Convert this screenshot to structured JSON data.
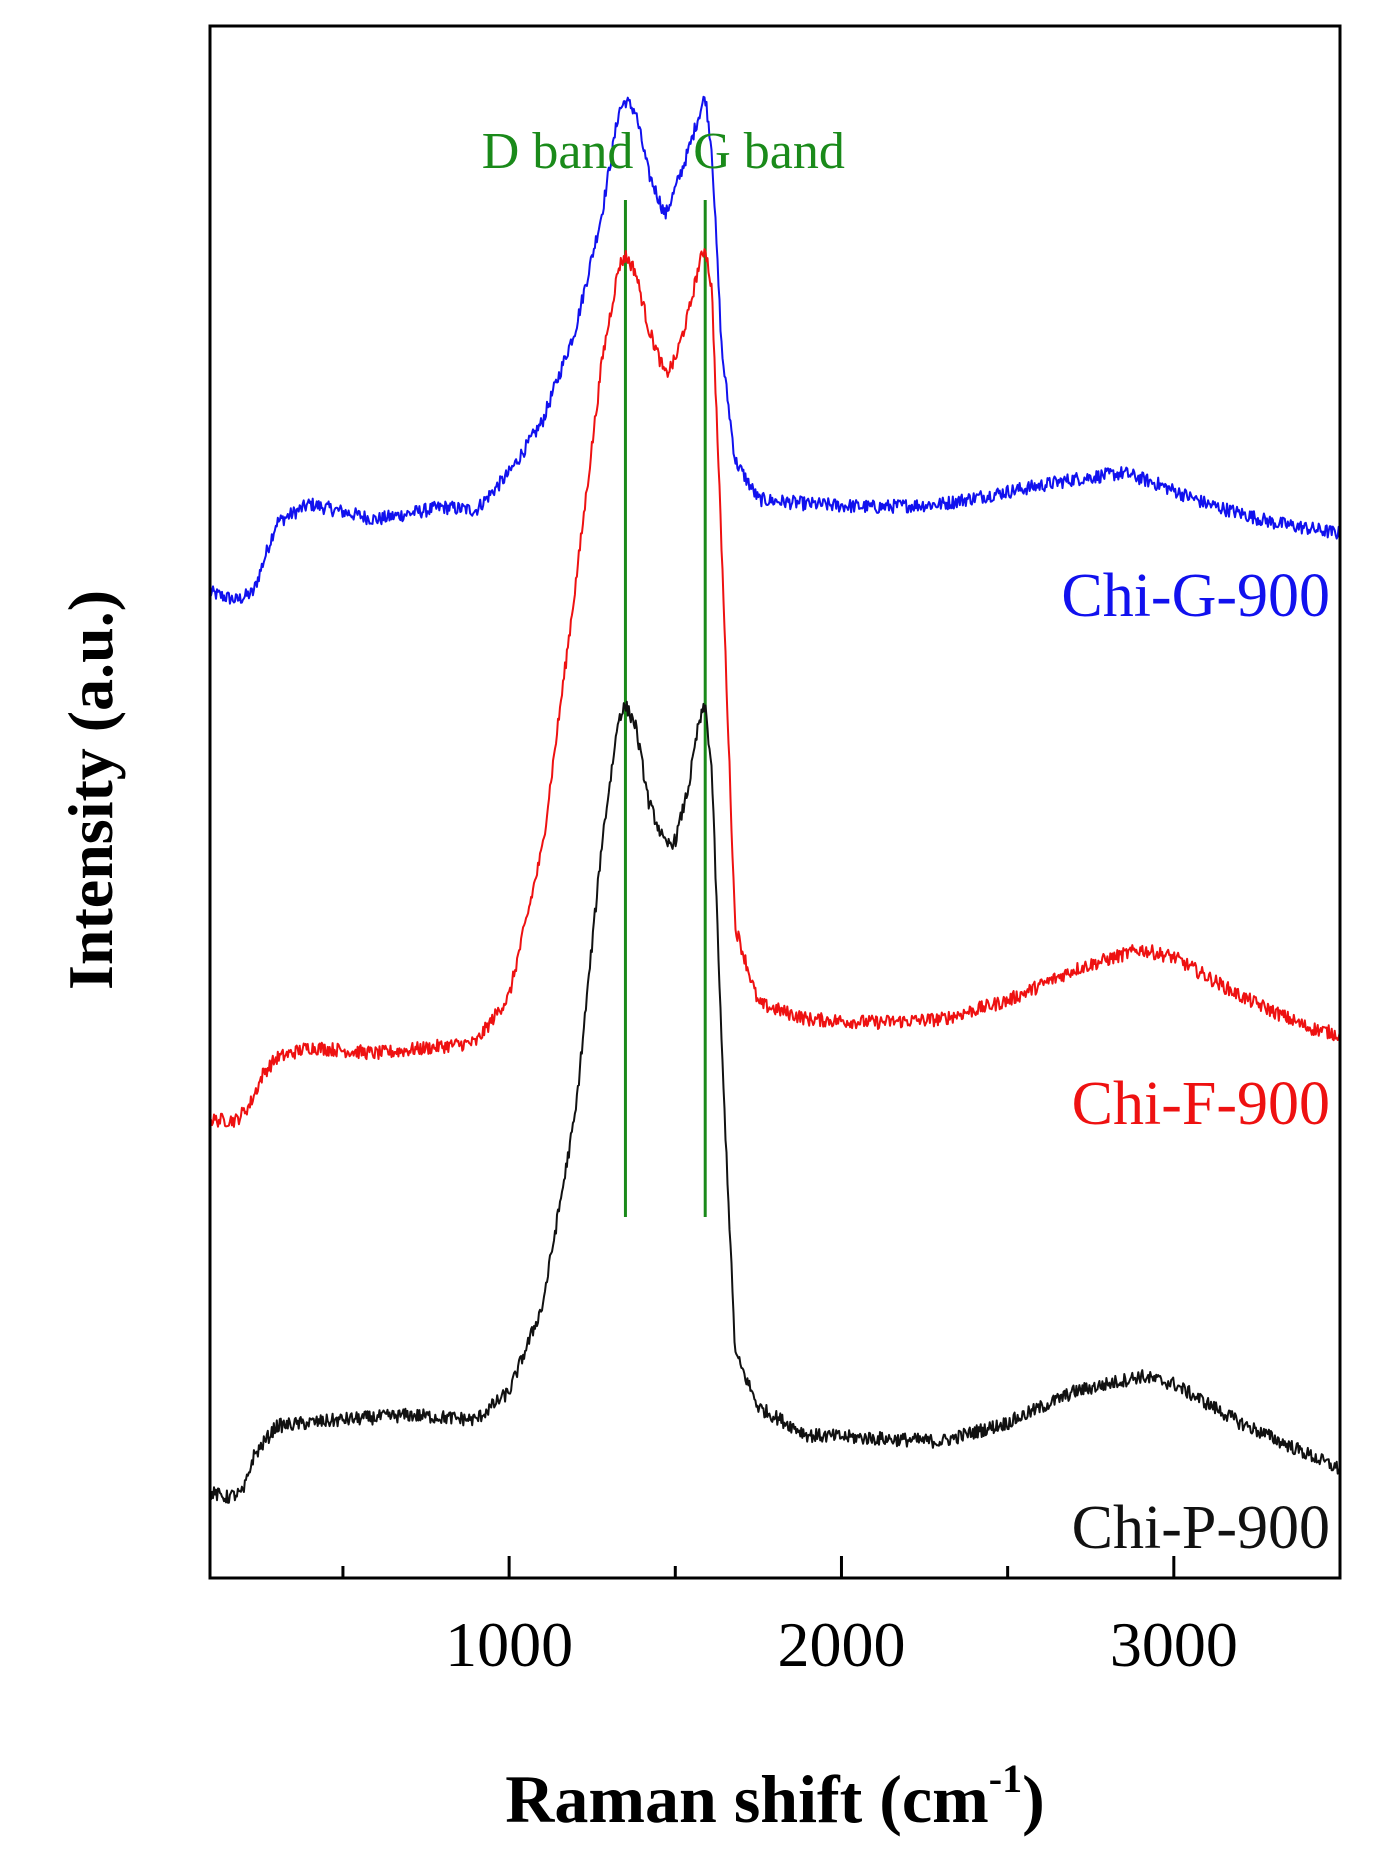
{
  "chart_data": {
    "type": "line",
    "title": "",
    "xlabel": "Raman shift (cm",
    "xlabel_sup": "-1",
    "xlabel_close": ")",
    "ylabel": "Intensity (a.u.)",
    "xlim": [
      100,
      3500
    ],
    "ylim": [
      0,
      10
    ],
    "grid": false,
    "y_ticks_shown": false,
    "x_ticks": [
      1000,
      2000,
      3000
    ],
    "x_tick_labels": [
      "1000",
      "2000",
      "3000"
    ],
    "x_minor_ticks": [
      500,
      1500,
      2500
    ],
    "reference_lines": [
      {
        "name": "D band",
        "x": 1350,
        "color": "#1a8a1a"
      },
      {
        "name": "G band",
        "x": 1590,
        "color": "#1a8a1a"
      }
    ],
    "series": [
      {
        "name": "Chi-G-900",
        "color": "#1111ee",
        "x": [
          100,
          180,
          230,
          300,
          400,
          600,
          800,
          900,
          1000,
          1100,
          1200,
          1280,
          1330,
          1350,
          1380,
          1420,
          1470,
          1500,
          1540,
          1570,
          1590,
          1610,
          1640,
          1680,
          1750,
          1900,
          2100,
          2300,
          2500,
          2700,
          2850,
          2950,
          3100,
          3300,
          3500
        ],
        "y": [
          6.35,
          6.3,
          6.35,
          6.8,
          6.92,
          6.82,
          6.9,
          6.88,
          7.12,
          7.45,
          8.05,
          8.8,
          9.45,
          9.52,
          9.45,
          9.05,
          8.78,
          8.95,
          9.2,
          9.42,
          9.55,
          9.2,
          7.9,
          7.2,
          6.95,
          6.92,
          6.9,
          6.92,
          7.0,
          7.08,
          7.12,
          7.05,
          6.92,
          6.8,
          6.73
        ]
      },
      {
        "name": "Chi-F-900",
        "color": "#ee1111",
        "x": [
          100,
          180,
          220,
          260,
          300,
          400,
          600,
          900,
          1000,
          1100,
          1200,
          1280,
          1330,
          1350,
          1380,
          1420,
          1470,
          1500,
          1540,
          1570,
          1590,
          1610,
          1640,
          1680,
          1750,
          1900,
          2100,
          2300,
          2500,
          2700,
          2900,
          3000,
          3200,
          3400,
          3500
        ],
        "y": [
          2.95,
          2.95,
          3.05,
          3.25,
          3.35,
          3.42,
          3.38,
          3.45,
          3.75,
          4.7,
          6.4,
          7.85,
          8.45,
          8.52,
          8.42,
          8.05,
          7.75,
          7.85,
          8.15,
          8.45,
          8.58,
          8.3,
          6.6,
          4.2,
          3.7,
          3.6,
          3.58,
          3.6,
          3.72,
          3.92,
          4.05,
          4.0,
          3.75,
          3.55,
          3.5
        ]
      },
      {
        "name": "Chi-P-900",
        "color": "#111111",
        "x": [
          100,
          150,
          200,
          230,
          300,
          400,
          500,
          700,
          900,
          1000,
          1100,
          1200,
          1280,
          1330,
          1350,
          1380,
          1420,
          1470,
          1500,
          1540,
          1570,
          1590,
          1610,
          1640,
          1680,
          1750,
          1900,
          2100,
          2300,
          2500,
          2700,
          2900,
          3000,
          3200,
          3500
        ],
        "y": [
          0.55,
          0.52,
          0.55,
          0.78,
          0.98,
          1.0,
          1.02,
          1.05,
          1.02,
          1.2,
          1.75,
          3.0,
          4.75,
          5.55,
          5.62,
          5.5,
          5.0,
          4.72,
          4.75,
          5.1,
          5.5,
          5.62,
          5.2,
          3.4,
          1.45,
          1.1,
          0.92,
          0.9,
          0.88,
          1.0,
          1.2,
          1.3,
          1.25,
          1.0,
          0.7
        ]
      }
    ]
  }
}
